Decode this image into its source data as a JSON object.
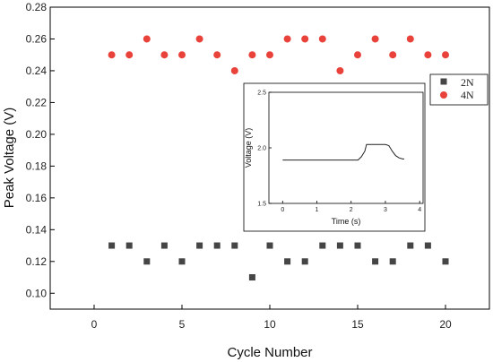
{
  "chart_data": [
    {
      "type": "scatter",
      "xlabel": "Cycle Number",
      "ylabel": "Peak Voltage (V)",
      "xlim": [
        -2.5,
        22.5
      ],
      "ylim": [
        0.09,
        0.28
      ],
      "xticks": [
        0,
        5,
        10,
        15,
        20
      ],
      "xtick_labels": [
        "0",
        "5",
        "10",
        "15",
        "20"
      ],
      "yticks": [
        0.1,
        0.12,
        0.14,
        0.16,
        0.18,
        0.2,
        0.22,
        0.24,
        0.26,
        0.28
      ],
      "ytick_labels": [
        "0.10",
        "0.12",
        "0.14",
        "0.16",
        "0.18",
        "0.20",
        "0.22",
        "0.24",
        "0.26",
        "0.28"
      ],
      "legend_position": "right",
      "series": [
        {
          "name": "2N",
          "marker": "square",
          "color": "#454545",
          "x": [
            1,
            2,
            3,
            4,
            5,
            6,
            7,
            8,
            9,
            10,
            11,
            12,
            13,
            14,
            15,
            16,
            17,
            18,
            19,
            20
          ],
          "y": [
            0.13,
            0.13,
            0.12,
            0.13,
            0.12,
            0.13,
            0.13,
            0.13,
            0.11,
            0.13,
            0.12,
            0.12,
            0.13,
            0.13,
            0.13,
            0.12,
            0.12,
            0.13,
            0.13,
            0.12
          ]
        },
        {
          "name": "4N",
          "marker": "circle",
          "color": "#e8423a",
          "x": [
            1,
            2,
            3,
            4,
            5,
            6,
            7,
            8,
            9,
            10,
            11,
            12,
            13,
            14,
            15,
            16,
            17,
            18,
            19,
            20
          ],
          "y": [
            0.25,
            0.25,
            0.26,
            0.25,
            0.25,
            0.26,
            0.25,
            0.24,
            0.25,
            0.25,
            0.26,
            0.26,
            0.26,
            0.24,
            0.25,
            0.26,
            0.25,
            0.26,
            0.25,
            0.25
          ]
        }
      ]
    },
    {
      "type": "line",
      "role": "inset",
      "xlabel": "Time (s)",
      "ylabel": "Voltage (V)",
      "xlim": [
        -0.4,
        4.1
      ],
      "ylim": [
        1.5,
        2.5
      ],
      "xticks": [
        0,
        1,
        2,
        3,
        4
      ],
      "xtick_labels": [
        "0",
        "1",
        "2",
        "3",
        "4"
      ],
      "yticks": [
        1.5,
        2.0,
        2.5
      ],
      "ytick_labels": [
        "1.5",
        "2.0",
        "2.5"
      ],
      "color": "#222222",
      "series": [
        {
          "x": [
            0.0,
            0.5,
            1.0,
            1.5,
            2.0,
            2.2,
            2.3,
            2.4,
            2.45,
            2.6,
            2.8,
            3.0,
            3.1,
            3.2,
            3.3,
            3.4,
            3.5,
            3.55
          ],
          "y": [
            1.89,
            1.89,
            1.89,
            1.89,
            1.89,
            1.89,
            1.92,
            1.97,
            2.03,
            2.03,
            2.03,
            2.03,
            2.02,
            1.97,
            1.93,
            1.91,
            1.9,
            1.9
          ]
        }
      ]
    }
  ]
}
